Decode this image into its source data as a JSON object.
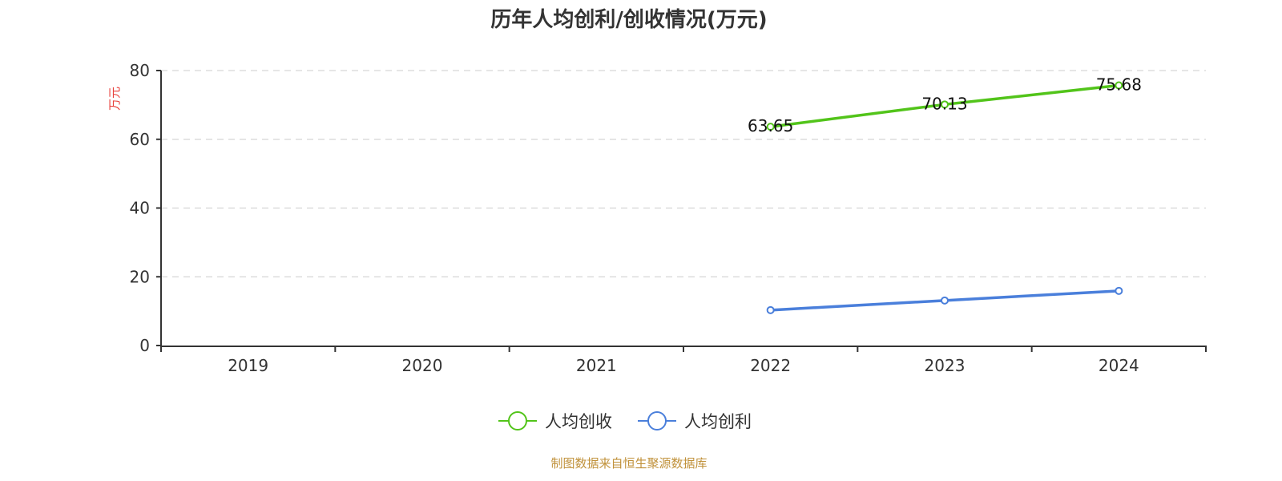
{
  "title": "历年人均创利/创收情况(万元)",
  "footer": "制图数据来自恒生聚源数据库",
  "y_unit": "万元",
  "colors": {
    "revenue": "#52c41a",
    "profit": "#4a7fdb",
    "grid": "#cccccc",
    "axis": "#333333",
    "unit": "#e8413c",
    "footer": "#c0913a"
  },
  "legend": [
    {
      "label": "人均创收",
      "color": "#52c41a"
    },
    {
      "label": "人均创利",
      "color": "#4a7fdb"
    }
  ],
  "chart_data": {
    "type": "line",
    "title": "历年人均创利/创收情况(万元)",
    "xlabel": "",
    "ylabel": "万元",
    "categories": [
      "2019",
      "2020",
      "2021",
      "2022",
      "2023",
      "2024"
    ],
    "ylim": [
      0,
      80
    ],
    "yticks": [
      0,
      20,
      40,
      60,
      80
    ],
    "grid": true,
    "legend_position": "bottom",
    "series": [
      {
        "name": "人均创收",
        "values": [
          null,
          null,
          null,
          63.65,
          70.13,
          75.68
        ],
        "labels_shown": true
      },
      {
        "name": "人均创利",
        "values": [
          null,
          null,
          null,
          10.3,
          13.1,
          15.9
        ],
        "labels_shown": false
      }
    ]
  }
}
